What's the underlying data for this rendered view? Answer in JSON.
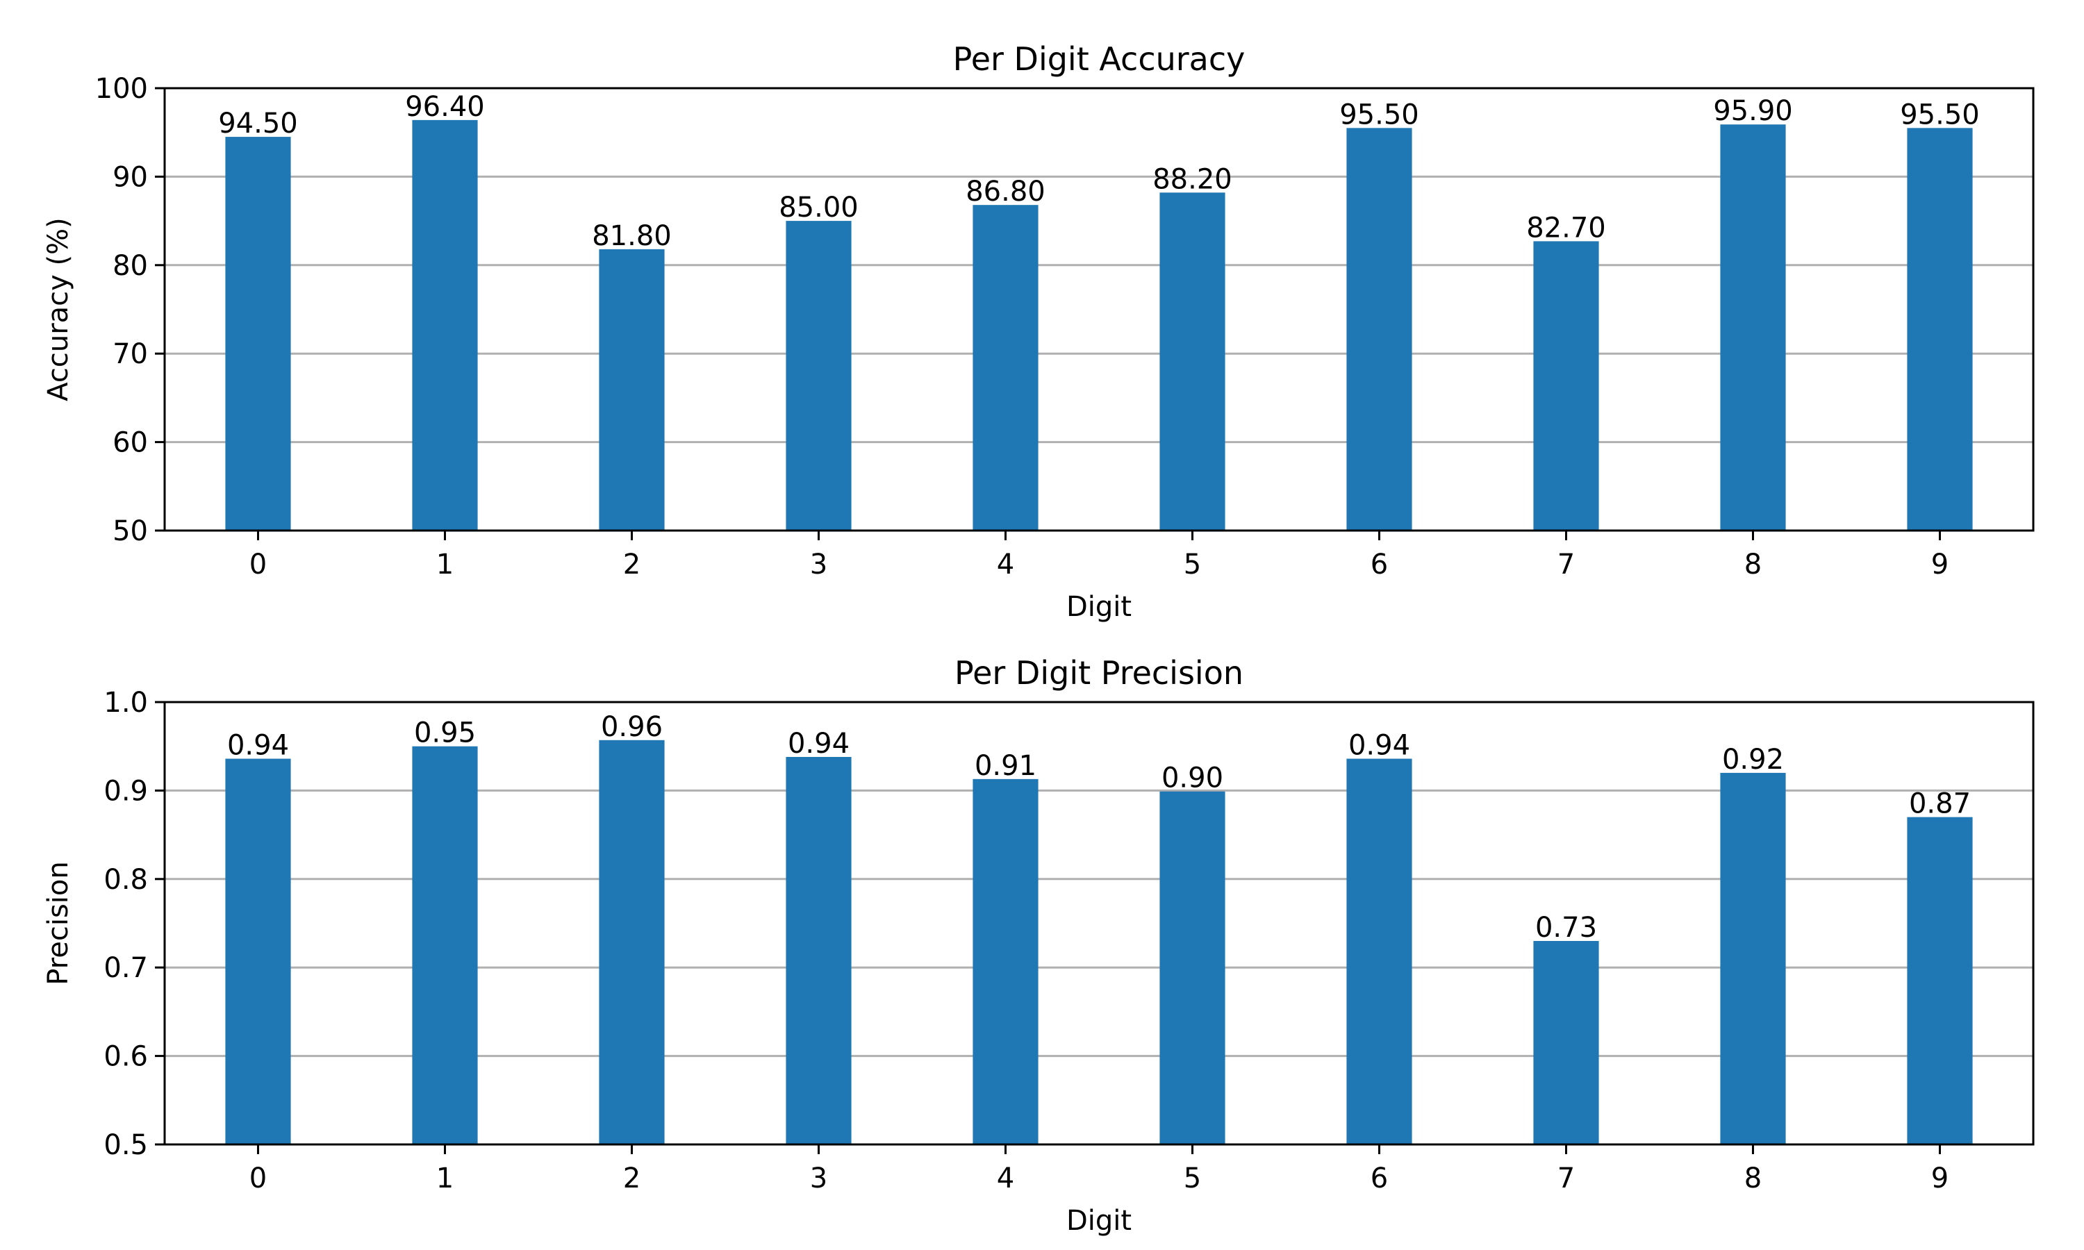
{
  "chart_data": [
    {
      "type": "bar",
      "title": "Per Digit Accuracy",
      "xlabel": "Digit",
      "ylabel": "Accuracy (%)",
      "categories": [
        "0",
        "1",
        "2",
        "3",
        "4",
        "5",
        "6",
        "7",
        "8",
        "9"
      ],
      "values": [
        94.5,
        96.4,
        81.8,
        85.0,
        86.8,
        88.2,
        95.5,
        82.7,
        95.9,
        95.5
      ],
      "data_labels": [
        "94.50",
        "96.40",
        "81.80",
        "85.00",
        "86.80",
        "88.20",
        "95.50",
        "82.70",
        "95.90",
        "95.50"
      ],
      "ylim": [
        50,
        100
      ],
      "yticks": [
        50,
        60,
        70,
        80,
        90,
        100
      ],
      "ytick_labels": [
        "50",
        "60",
        "70",
        "80",
        "90",
        "100"
      ],
      "grid": "y",
      "bar_color": "#1f77b4"
    },
    {
      "type": "bar",
      "title": "Per Digit Precision",
      "xlabel": "Digit",
      "ylabel": "Precision",
      "categories": [
        "0",
        "1",
        "2",
        "3",
        "4",
        "5",
        "6",
        "7",
        "8",
        "9"
      ],
      "values": [
        0.936,
        0.95,
        0.957,
        0.938,
        0.913,
        0.899,
        0.936,
        0.73,
        0.92,
        0.87
      ],
      "data_labels": [
        "0.94",
        "0.95",
        "0.96",
        "0.94",
        "0.91",
        "0.90",
        "0.94",
        "0.73",
        "0.92",
        "0.87"
      ],
      "ylim": [
        0.5,
        1.0
      ],
      "yticks": [
        0.5,
        0.6,
        0.7,
        0.8,
        0.9,
        1.0
      ],
      "ytick_labels": [
        "0.5",
        "0.6",
        "0.7",
        "0.8",
        "0.9",
        "1.0"
      ],
      "grid": "y",
      "bar_color": "#1f77b4"
    }
  ]
}
